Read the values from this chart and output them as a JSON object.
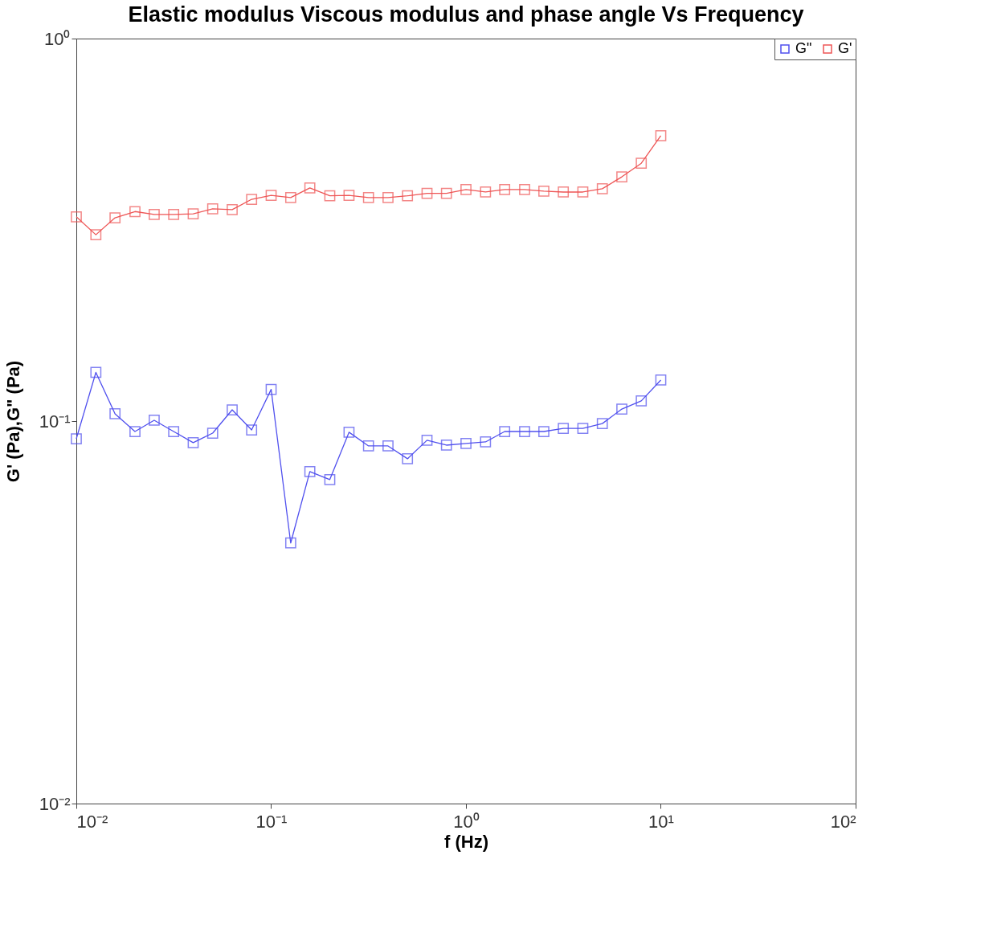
{
  "chart_data": {
    "type": "line",
    "title": "Elastic modulus Viscous modulus and phase angle Vs Frequency",
    "xlabel": "f (Hz)",
    "ylabel": "G' (Pa),G\" (Pa)",
    "log": "xy",
    "grid": false,
    "legend": "top right",
    "marker": "square",
    "line_style": "solid",
    "xlim": [
      0.01,
      100
    ],
    "ylim": [
      0.01,
      1
    ],
    "xticks": [
      {
        "value": 0.01,
        "label": "10⁻²"
      },
      {
        "value": 0.1,
        "label": "10⁻¹"
      },
      {
        "value": 1,
        "label": "10⁰"
      },
      {
        "value": 10,
        "label": "10¹"
      },
      {
        "value": 100,
        "label": "10²"
      }
    ],
    "yticks": [
      {
        "value": 0.01,
        "label": "10⁻²"
      },
      {
        "value": 0.1,
        "label": "10⁻¹"
      },
      {
        "value": 1,
        "label": "10⁰"
      }
    ],
    "x": [
      0.01,
      0.0126,
      0.0158,
      0.02,
      0.0251,
      0.0316,
      0.0398,
      0.0501,
      0.0631,
      0.0794,
      0.1,
      0.126,
      0.158,
      0.2,
      0.251,
      0.316,
      0.398,
      0.501,
      0.631,
      0.794,
      1,
      1.26,
      1.58,
      2,
      2.51,
      3.16,
      3.98,
      5.01,
      6.31,
      7.94,
      10
    ],
    "series": [
      {
        "name": "G\"",
        "color": "#5050ee",
        "values": [
          0.0899,
          0.134,
          0.1045,
          0.0939,
          0.1005,
          0.0939,
          0.0878,
          0.093,
          0.107,
          0.0948,
          0.121,
          0.048,
          0.0738,
          0.0703,
          0.0935,
          0.0861,
          0.0861,
          0.0797,
          0.0891,
          0.0865,
          0.0874,
          0.0882,
          0.0939,
          0.0939,
          0.0939,
          0.0957,
          0.0957,
          0.0985,
          0.1075,
          0.1129,
          0.128
        ]
      },
      {
        "name": "G'",
        "color": "#ee5555",
        "values": [
          0.342,
          0.307,
          0.34,
          0.353,
          0.347,
          0.347,
          0.348,
          0.359,
          0.357,
          0.38,
          0.389,
          0.384,
          0.407,
          0.388,
          0.389,
          0.384,
          0.384,
          0.388,
          0.394,
          0.394,
          0.403,
          0.397,
          0.403,
          0.403,
          0.399,
          0.397,
          0.397,
          0.405,
          0.435,
          0.472,
          0.557
        ]
      }
    ]
  }
}
